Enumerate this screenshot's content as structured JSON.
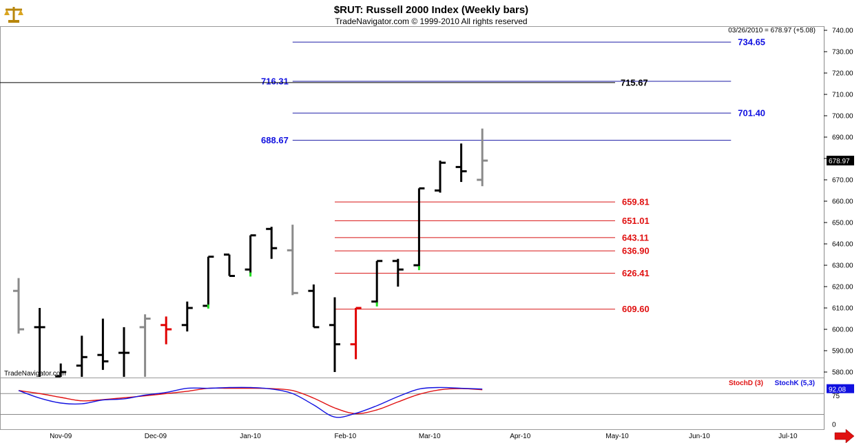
{
  "header": {
    "title": "$RUT:  Russell 2000 Index  (Weekly bars)",
    "subtitle": "TradeNavigator.com © 1999-2010 All rights reserved",
    "info": "03/26/2010 = 678.97 (+5.08)",
    "watermark": "TradeNavigator.com"
  },
  "colors": {
    "blue_line": "#1a1aa6",
    "red_line": "#d81010",
    "up_bar": "#000000",
    "gray_bar": "#8a8a8a",
    "red_bar": "#e00000",
    "green_dot": "#22dd22",
    "stoch_d": "#e01010",
    "stoch_k": "#1010e0"
  },
  "chart_data": [
    {
      "type": "ohlc",
      "title": "$RUT:  Russell 2000 Index  (Weekly bars)",
      "ylim": [
        576,
        742
      ],
      "yticks": [
        580,
        590,
        600,
        610,
        620,
        630,
        640,
        650,
        660,
        670,
        680,
        690,
        700,
        710,
        720,
        730,
        740
      ],
      "ytick_labels": [
        "580.00",
        "590.00",
        "600.00",
        "610.00",
        "620.00",
        "630.00",
        "640.00",
        "650.00",
        "660.00",
        "670.00",
        "680.00",
        "690.00",
        "700.00",
        "710.00",
        "720.00",
        "730.00",
        "740.00"
      ],
      "last_price_label": "678.97",
      "x_month_labels": [
        {
          "label": "Nov-09",
          "week": 2
        },
        {
          "label": "Dec-09",
          "week": 6.5
        },
        {
          "label": "Jan-10",
          "week": 11
        },
        {
          "label": "Feb-10",
          "week": 15.5
        },
        {
          "label": "Mar-10",
          "week": 19.5
        },
        {
          "label": "Apr-10",
          "week": 23.8
        },
        {
          "label": "May-10",
          "week": 28.4
        },
        {
          "label": "Jun-10",
          "week": 32.3
        },
        {
          "label": "Jul-10",
          "week": 36.5
        }
      ],
      "bars": [
        {
          "w": 0,
          "o": 618,
          "h": 624,
          "l": 598,
          "c": 600,
          "color": "gray"
        },
        {
          "w": 1,
          "o": 601,
          "h": 610,
          "l": 576,
          "c": 601,
          "color": "black"
        },
        {
          "w": 2,
          "o": 578,
          "h": 584,
          "l": 576,
          "c": 580,
          "color": "black"
        },
        {
          "w": 3,
          "o": 583,
          "h": 597,
          "l": 576,
          "c": 587,
          "color": "black"
        },
        {
          "w": 4,
          "o": 588,
          "h": 605,
          "l": 581,
          "c": 585,
          "color": "black"
        },
        {
          "w": 5,
          "o": 589,
          "h": 601,
          "l": 577,
          "c": 589,
          "color": "black"
        },
        {
          "w": 6,
          "o": 601,
          "h": 607,
          "l": 577,
          "c": 605,
          "color": "gray"
        },
        {
          "w": 7,
          "o": 602,
          "h": 606,
          "l": 593,
          "c": 600,
          "color": "red"
        },
        {
          "w": 8,
          "o": 602,
          "h": 613,
          "l": 599,
          "c": 610,
          "color": "black"
        },
        {
          "w": 9,
          "o": 611,
          "h": 634,
          "l": 611,
          "c": 634,
          "color": "black",
          "green_low": true
        },
        {
          "w": 10,
          "o": 635,
          "h": 635,
          "l": 625,
          "c": 625,
          "color": "black"
        },
        {
          "w": 11,
          "o": 628,
          "h": 644,
          "l": 626,
          "c": 644,
          "color": "black",
          "green_low": true
        },
        {
          "w": 12,
          "o": 647,
          "h": 648,
          "l": 633,
          "c": 638,
          "color": "black"
        },
        {
          "w": 13,
          "o": 637,
          "h": 649,
          "l": 616,
          "c": 617,
          "color": "gray"
        },
        {
          "w": 14,
          "o": 618,
          "h": 621,
          "l": 601,
          "c": 601,
          "color": "black"
        },
        {
          "w": 15,
          "o": 602,
          "h": 615,
          "l": 580,
          "c": 593,
          "color": "black"
        },
        {
          "w": 16,
          "o": 593,
          "h": 610,
          "l": 586,
          "c": 610,
          "color": "red"
        },
        {
          "w": 17,
          "o": 613,
          "h": 632,
          "l": 612,
          "c": 632,
          "color": "black",
          "green_low": true
        },
        {
          "w": 18,
          "o": 632,
          "h": 633,
          "l": 620,
          "c": 628,
          "color": "black"
        },
        {
          "w": 19,
          "o": 630,
          "h": 666,
          "l": 629,
          "c": 666,
          "color": "black",
          "green_low": true
        },
        {
          "w": 20,
          "o": 665,
          "h": 679,
          "l": 664,
          "c": 678,
          "color": "black"
        },
        {
          "w": 21,
          "o": 676,
          "h": 687,
          "l": 669,
          "c": 674,
          "color": "black"
        },
        {
          "w": 22,
          "o": 670,
          "h": 694,
          "l": 667,
          "c": 679,
          "color": "gray"
        }
      ],
      "levels": [
        {
          "value": 734.65,
          "label": "734.65",
          "color": "blue",
          "from_week": 13,
          "to_week": 33.8,
          "label_side": "right"
        },
        {
          "value": 716.31,
          "label": "716.31",
          "color": "blue",
          "from_week": 13,
          "to_week": 33.8,
          "label_side": "left"
        },
        {
          "value": 715.67,
          "label": "715.67",
          "color": "black",
          "from_week": -1,
          "to_week": 28.3,
          "label_side": "right"
        },
        {
          "value": 701.4,
          "label": "701.40",
          "color": "blue",
          "from_week": 13,
          "to_week": 33.8,
          "label_side": "right"
        },
        {
          "value": 688.67,
          "label": "688.67",
          "color": "blue",
          "from_week": 13,
          "to_week": 33.8,
          "label_side": "left"
        },
        {
          "value": 659.81,
          "label": "659.81",
          "color": "red",
          "from_week": 15,
          "to_week": 28.3,
          "label_side": "right"
        },
        {
          "value": 651.01,
          "label": "651.01",
          "color": "red",
          "from_week": 15,
          "to_week": 28.3,
          "label_side": "right"
        },
        {
          "value": 643.11,
          "label": "643.11",
          "color": "red",
          "from_week": 15,
          "to_week": 28.3,
          "label_side": "right"
        },
        {
          "value": 636.9,
          "label": "636.90",
          "color": "red",
          "from_week": 15,
          "to_week": 28.3,
          "label_side": "right"
        },
        {
          "value": 626.41,
          "label": "626.41",
          "color": "red",
          "from_week": 15,
          "to_week": 28.3,
          "label_side": "right"
        },
        {
          "value": 609.6,
          "label": "609.60",
          "color": "red",
          "from_week": 15,
          "to_week": 28.3,
          "label_side": "right"
        }
      ]
    },
    {
      "type": "line",
      "title": "",
      "legend": [
        "StochD (3)",
        "StochK (5,3)"
      ],
      "ylim": [
        -5,
        115
      ],
      "yticks": [
        0,
        75
      ],
      "ytick_labels": [
        "0",
        "75"
      ],
      "ref_lines": [
        25,
        80
      ],
      "last_value_label": "92.08",
      "x": [
        0,
        1,
        2,
        3,
        4,
        5,
        6,
        7,
        8,
        9,
        10,
        11,
        12,
        13,
        14,
        15,
        16,
        17,
        18,
        19,
        20,
        21,
        22
      ],
      "series": [
        {
          "name": "StochD (3)",
          "values": [
            88,
            80,
            70,
            61,
            64,
            69,
            74,
            80,
            86,
            94,
            94,
            94,
            93,
            88,
            68,
            42,
            27,
            37,
            58,
            78,
            90,
            93,
            90
          ]
        },
        {
          "name": "StochK (5,3)",
          "values": [
            88,
            68,
            55,
            53,
            63,
            66,
            76,
            83,
            94,
            94,
            96,
            96,
            92,
            80,
            50,
            18,
            28,
            48,
            72,
            92,
            96,
            94,
            92
          ]
        }
      ]
    }
  ]
}
